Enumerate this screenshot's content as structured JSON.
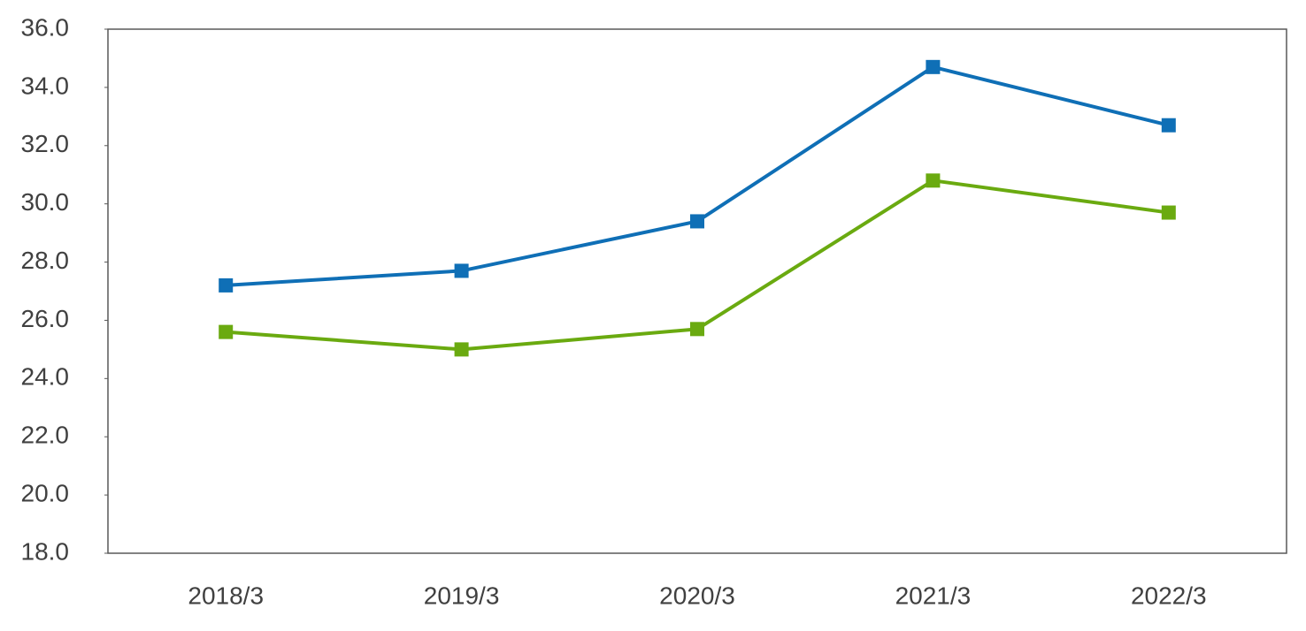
{
  "chart_data": {
    "type": "line",
    "categories": [
      "2018/3",
      "2019/3",
      "2020/3",
      "2021/3",
      "2022/3"
    ],
    "series": [
      {
        "color": "#0f6fb6",
        "values": [
          27.2,
          27.7,
          29.4,
          34.7,
          32.7
        ]
      },
      {
        "color": "#6aaa10",
        "values": [
          25.6,
          25.0,
          25.7,
          30.8,
          29.7
        ]
      }
    ],
    "ylim": [
      18,
      36
    ],
    "yticks": [
      {
        "value": 18,
        "label": "18.0"
      },
      {
        "value": 20,
        "label": "20.0"
      },
      {
        "value": 22,
        "label": "22.0"
      },
      {
        "value": 24,
        "label": "24.0"
      },
      {
        "value": 26,
        "label": "26.0"
      },
      {
        "value": 28,
        "label": "28.0"
      },
      {
        "value": 30,
        "label": "30.0"
      },
      {
        "value": 32,
        "label": "32.0"
      },
      {
        "value": 34,
        "label": "34.0"
      },
      {
        "value": 36,
        "label": "36.0"
      }
    ],
    "grid": false
  }
}
